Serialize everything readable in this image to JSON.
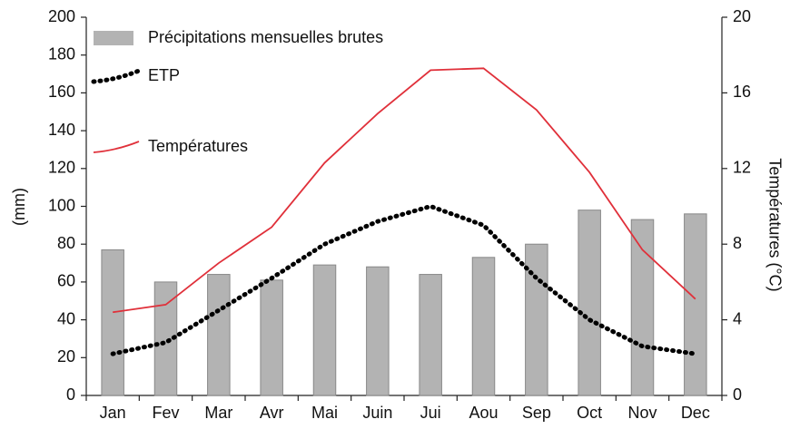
{
  "chart_data": {
    "type": "combo",
    "categories": [
      "Jan",
      "Fev",
      "Mar",
      "Avr",
      "Mai",
      "Juin",
      "Jui",
      "Aou",
      "Sep",
      "Oct",
      "Nov",
      "Dec"
    ],
    "ylabel": "(mm)",
    "y2label": "Températures  (°C)",
    "ylim": [
      0,
      200
    ],
    "yticks": [
      0,
      20,
      40,
      60,
      80,
      100,
      120,
      140,
      160,
      180,
      200
    ],
    "y2lim": [
      0,
      20
    ],
    "y2ticks": [
      0,
      4,
      8,
      12,
      16,
      20
    ],
    "grid": false,
    "legend": "top-left",
    "series": [
      {
        "name": "Précipitations mensuelles brutes",
        "type": "bar",
        "color": "#b3b3b3",
        "values": [
          77,
          60,
          64,
          61,
          69,
          68,
          64,
          73,
          80,
          98,
          93,
          96
        ]
      },
      {
        "name": "ETP",
        "type": "line",
        "style": "dotted",
        "color": "#000000",
        "values": [
          22,
          28,
          45,
          62,
          80,
          92,
          100,
          90,
          62,
          40,
          26,
          22
        ]
      },
      {
        "name": "Températures",
        "type": "line",
        "style": "solid",
        "color": "#e0303a",
        "axis": "y2",
        "values": [
          4.4,
          4.8,
          7.0,
          8.9,
          12.3,
          14.9,
          17.2,
          17.3,
          15.1,
          11.8,
          7.7,
          5.1
        ]
      }
    ]
  }
}
